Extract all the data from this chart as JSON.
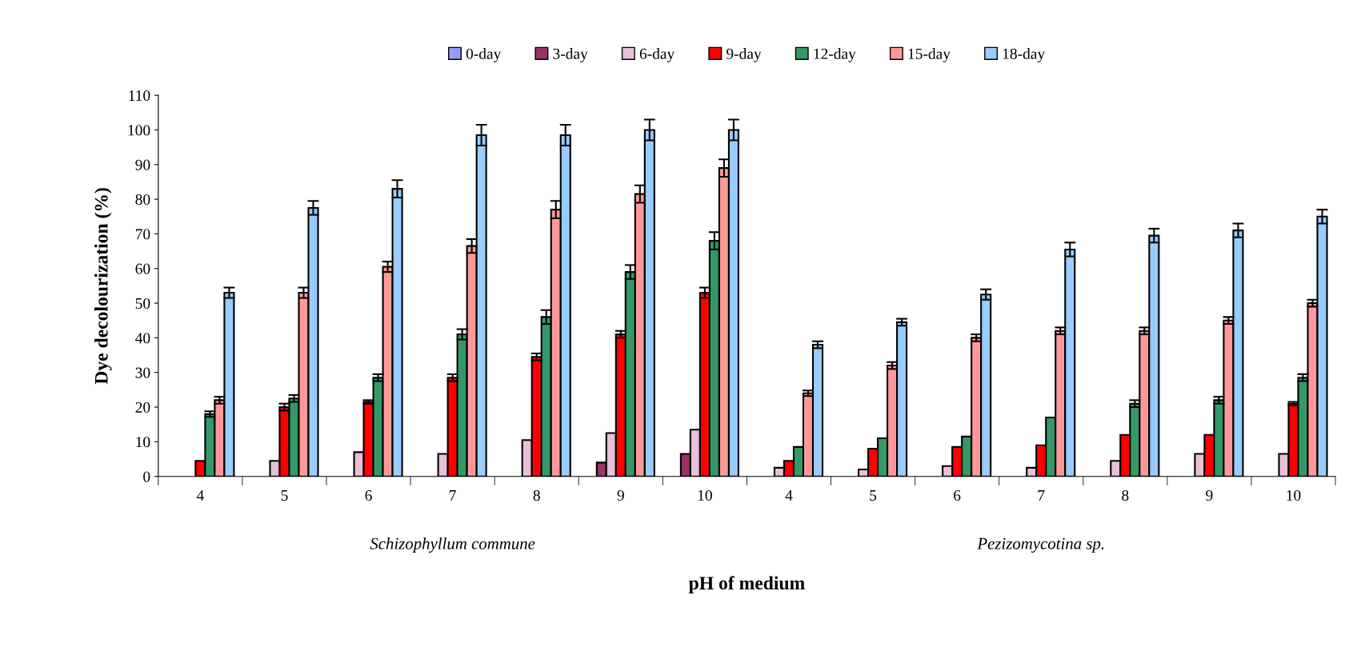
{
  "chart_data": {
    "type": "bar",
    "xlabel": "pH of medium",
    "ylabel": "Dye decolourization (%)",
    "categories": [
      "4",
      "5",
      "6",
      "7",
      "8",
      "9",
      "10",
      "4",
      "5",
      "6",
      "7",
      "8",
      "9",
      "10"
    ],
    "ylim": [
      0,
      110
    ],
    "yticks": [
      0,
      10,
      20,
      30,
      40,
      50,
      60,
      70,
      80,
      90,
      100,
      110
    ],
    "grid": false,
    "legend": "top",
    "annotations": [
      "Schizophyllum commune",
      "Pezizomycotina sp."
    ],
    "series": [
      {
        "name": "0-day",
        "color": "#9999ff",
        "values": [
          null,
          null,
          null,
          null,
          null,
          null,
          null,
          null,
          null,
          null,
          null,
          null,
          null,
          null
        ]
      },
      {
        "name": "3-day",
        "color": "#993366",
        "values": [
          null,
          null,
          null,
          null,
          null,
          4,
          6.5,
          null,
          null,
          null,
          null,
          null,
          null,
          null
        ]
      },
      {
        "name": "6-day",
        "color": "#e8c0d8",
        "values": [
          null,
          4.5,
          7,
          6.5,
          10.5,
          12.5,
          13.5,
          2.5,
          2,
          3,
          2.5,
          4.5,
          6.5,
          6.5
        ]
      },
      {
        "name": "9-day",
        "color": "#ff0000",
        "values": [
          4.5,
          20,
          21.5,
          28.5,
          34.5,
          41,
          53,
          4.5,
          8,
          8.5,
          9,
          12,
          12,
          21
        ],
        "errors": [
          null,
          1,
          0.5,
          1,
          1,
          1,
          1.5,
          null,
          null,
          null,
          null,
          null,
          null,
          0.5
        ]
      },
      {
        "name": "12-day",
        "color": "#339966",
        "values": [
          18,
          22.5,
          28.5,
          41,
          46,
          59,
          68,
          8.5,
          11,
          11.5,
          17,
          21,
          22,
          28.5
        ],
        "errors": [
          0.8,
          1,
          1,
          1.5,
          2,
          2,
          2.5,
          null,
          null,
          null,
          null,
          1,
          1,
          1
        ]
      },
      {
        "name": "15-day",
        "color": "#ff9999",
        "values": [
          22,
          53,
          60.5,
          66.5,
          77,
          81.5,
          89,
          24,
          32,
          40,
          42,
          42,
          45,
          50
        ],
        "errors": [
          1,
          1.5,
          1.5,
          2,
          2.5,
          2.5,
          2.5,
          0.8,
          1,
          1,
          1,
          1,
          1,
          1
        ]
      },
      {
        "name": "18-day",
        "color": "#99ccff",
        "values": [
          53,
          77.5,
          83,
          98.5,
          98.5,
          100,
          100,
          38,
          44.5,
          52.5,
          65.5,
          69.5,
          71,
          75
        ],
        "errors": [
          1.5,
          2,
          2.5,
          3,
          3,
          3,
          3,
          1,
          1,
          1.5,
          2,
          2,
          2,
          2
        ]
      }
    ]
  }
}
